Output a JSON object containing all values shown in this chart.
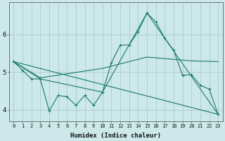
{
  "xlabel": "Humidex (Indice chaleur)",
  "ylabel": "",
  "bg_color": "#cce8e8",
  "grid_color": "#aacccc",
  "line_color": "#1a7a6e",
  "xlim": [
    -0.5,
    23.5
  ],
  "ylim": [
    3.7,
    6.85
  ],
  "yticks": [
    4,
    5,
    6
  ],
  "xticks": [
    0,
    1,
    2,
    3,
    4,
    5,
    6,
    7,
    8,
    9,
    10,
    11,
    12,
    13,
    14,
    15,
    16,
    17,
    18,
    19,
    20,
    21,
    22,
    23
  ],
  "series1_x": [
    0,
    1,
    2,
    3,
    4,
    5,
    6,
    7,
    8,
    9,
    10,
    11,
    12,
    13,
    14,
    15,
    16,
    17,
    18,
    19,
    20,
    21,
    22,
    23
  ],
  "series1_y": [
    5.28,
    5.05,
    4.82,
    4.82,
    3.97,
    4.38,
    4.35,
    4.12,
    4.38,
    4.12,
    4.47,
    5.25,
    5.72,
    5.72,
    6.08,
    6.57,
    6.33,
    5.9,
    5.58,
    4.92,
    4.93,
    4.65,
    4.55,
    3.88
  ],
  "series2_x": [
    0,
    3,
    10,
    15,
    23
  ],
  "series2_y": [
    5.28,
    4.82,
    4.47,
    6.57,
    3.88
  ],
  "series3_x": [
    0,
    23
  ],
  "series3_y": [
    5.28,
    3.88
  ],
  "series4_x": [
    0,
    3,
    10,
    15,
    20,
    23
  ],
  "series4_y": [
    5.28,
    4.85,
    5.1,
    5.4,
    5.3,
    5.28
  ]
}
